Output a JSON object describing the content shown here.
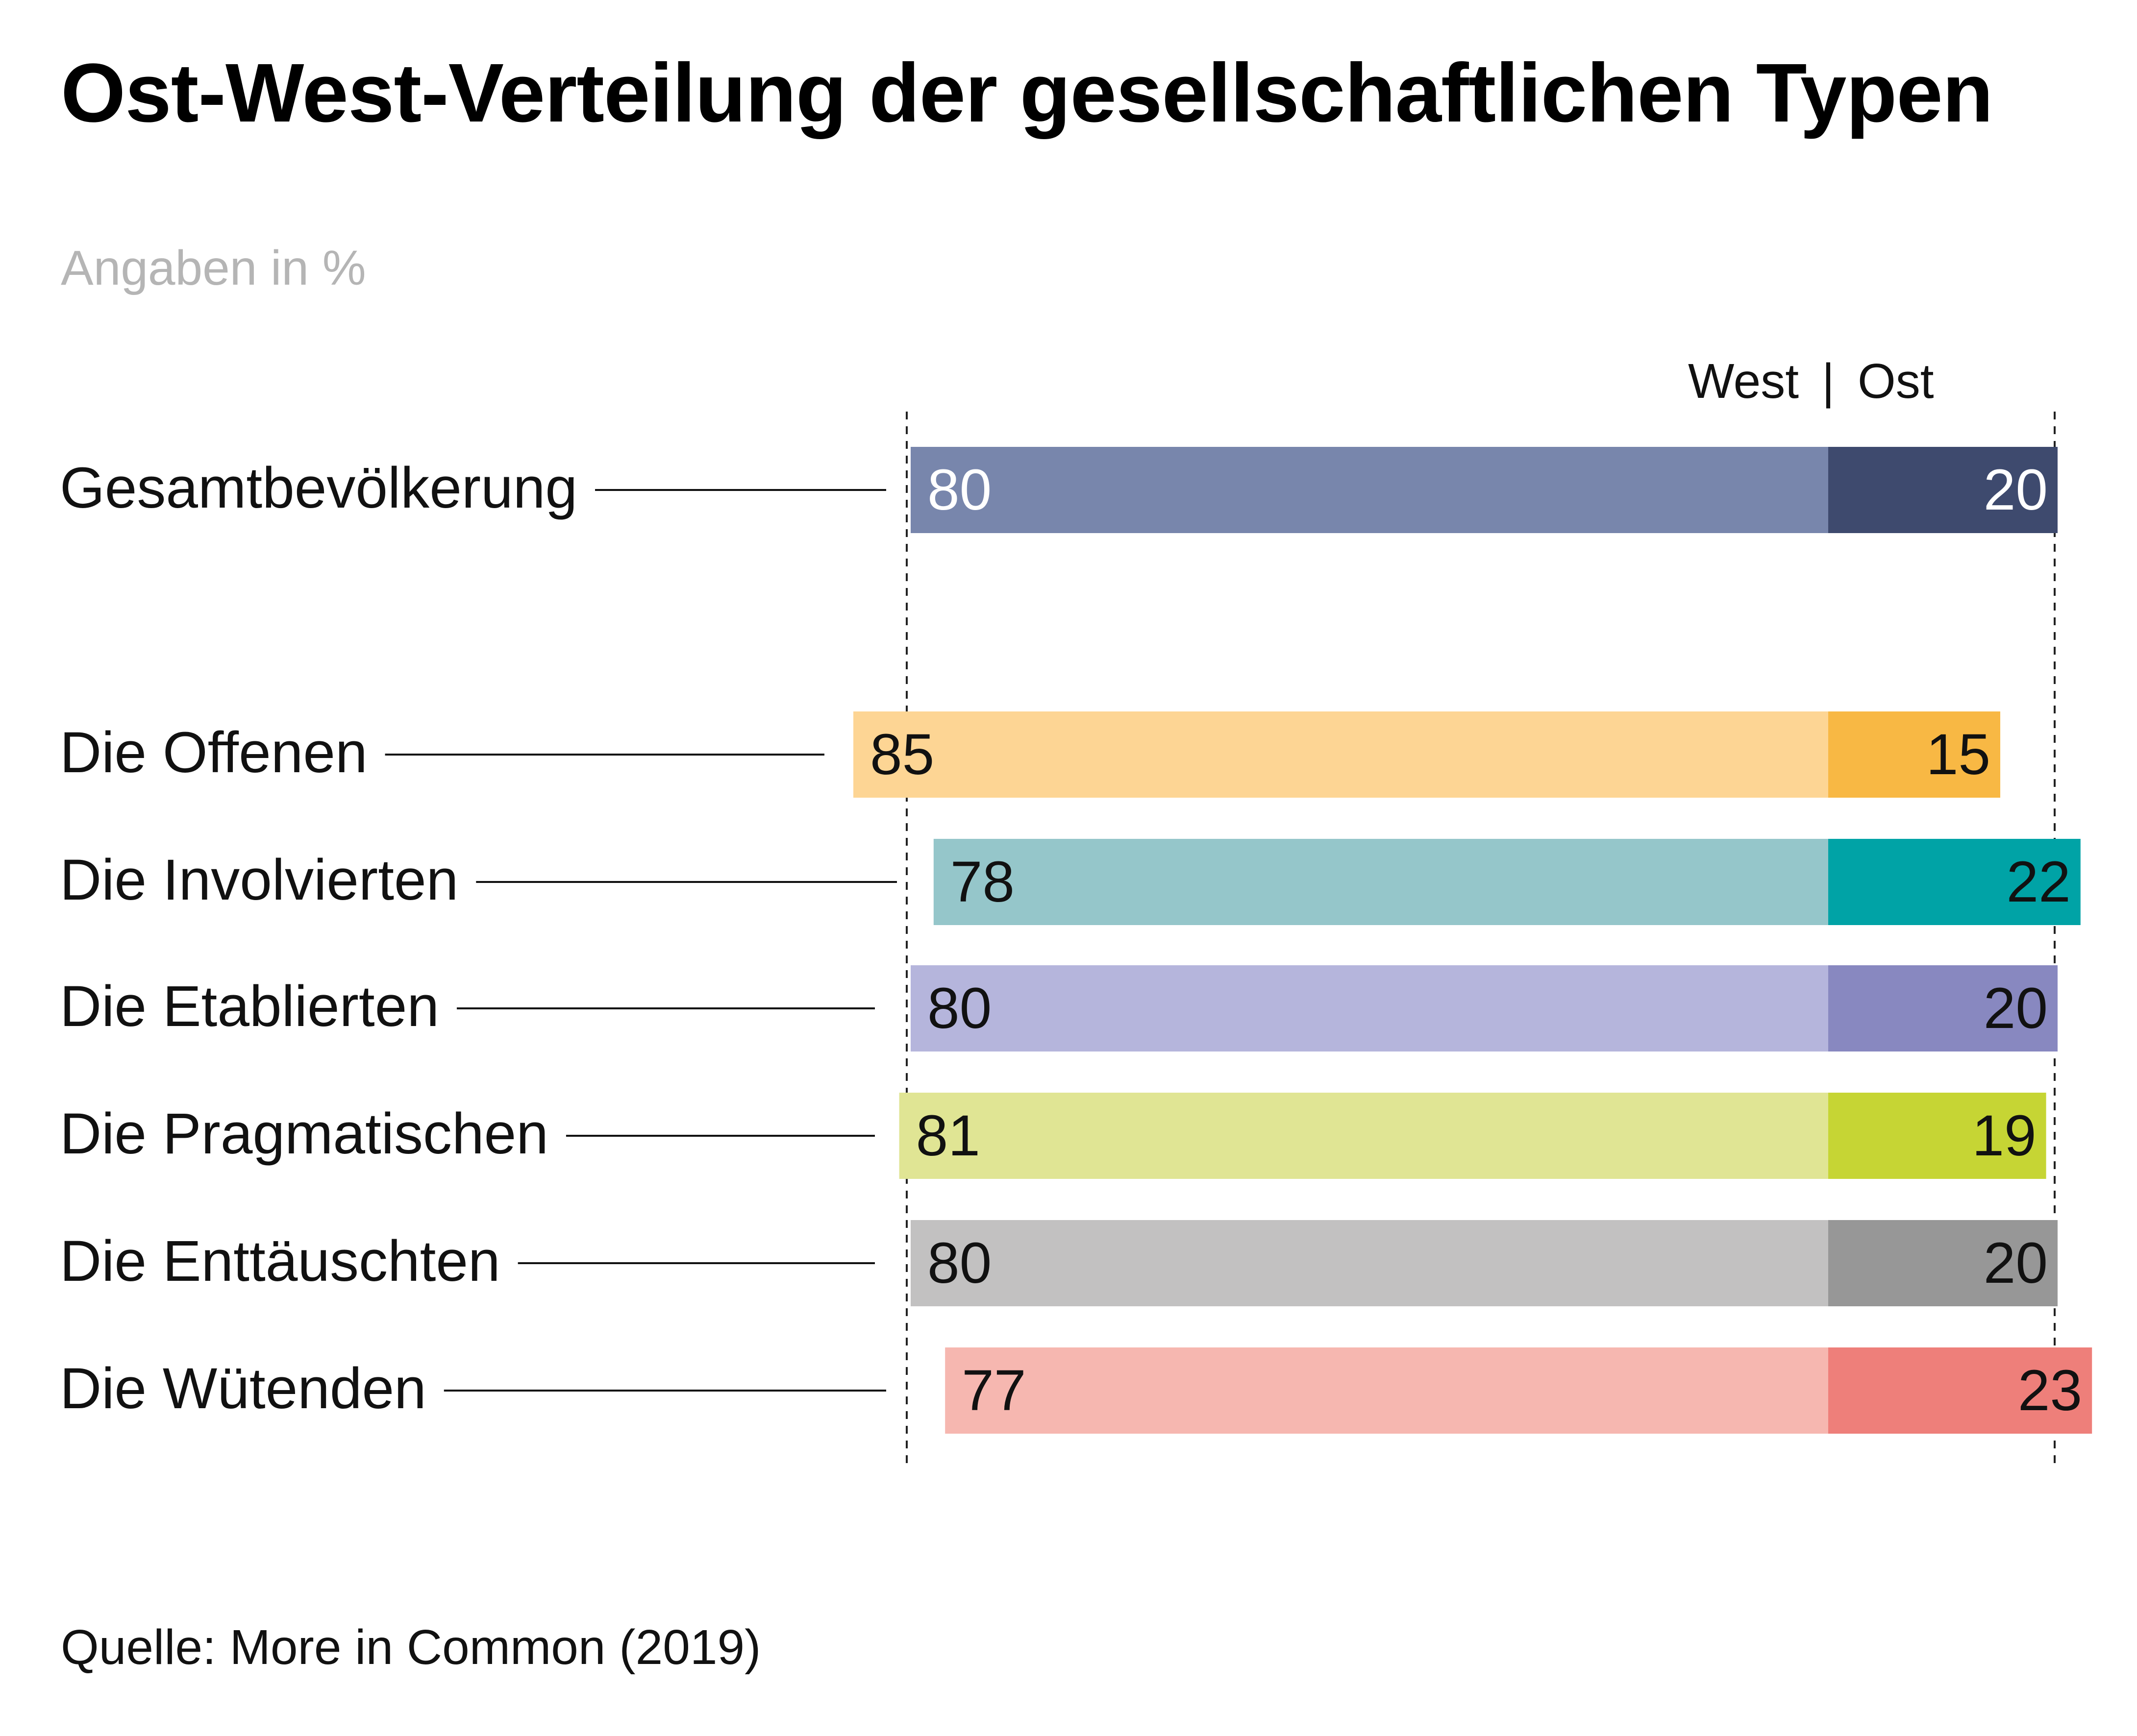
{
  "chart_data": {
    "type": "bar",
    "title": "Ost-West-Verteilung der gesellschaftlichen Typen",
    "subtitle": "Angaben in %",
    "source": "Quelle: More in Common (2019)",
    "legend_labels": [
      "West",
      "|",
      "Ost"
    ],
    "categories": [
      "Gesamtbevölkerung",
      "Die Offenen",
      "Die Involvierten",
      "Die Etablierten",
      "Die Pragmatischen",
      "Die Enttäuschten",
      "Die Wütenden"
    ],
    "series": [
      {
        "name": "West",
        "values": [
          80,
          85,
          78,
          80,
          81,
          80,
          77
        ]
      },
      {
        "name": "Ost",
        "values": [
          20,
          15,
          22,
          20,
          19,
          20,
          23
        ]
      }
    ],
    "stacked": true,
    "colors": {
      "west": [
        "#7886ac",
        "#fdd594",
        "#95c6ca",
        "#b5b5dc",
        "#e0e594",
        "#c2c1c1",
        "#f6b7b0"
      ],
      "ost": [
        "#3e4a6e",
        "#f8b844",
        "#00a3a6",
        "#8888c0",
        "#c6d534",
        "#979797",
        "#ee7f7a"
      ],
      "label_on_bar": [
        "#ffffff",
        "#111111",
        "#111111",
        "#111111",
        "#111111",
        "#111111",
        "#111111"
      ]
    }
  }
}
